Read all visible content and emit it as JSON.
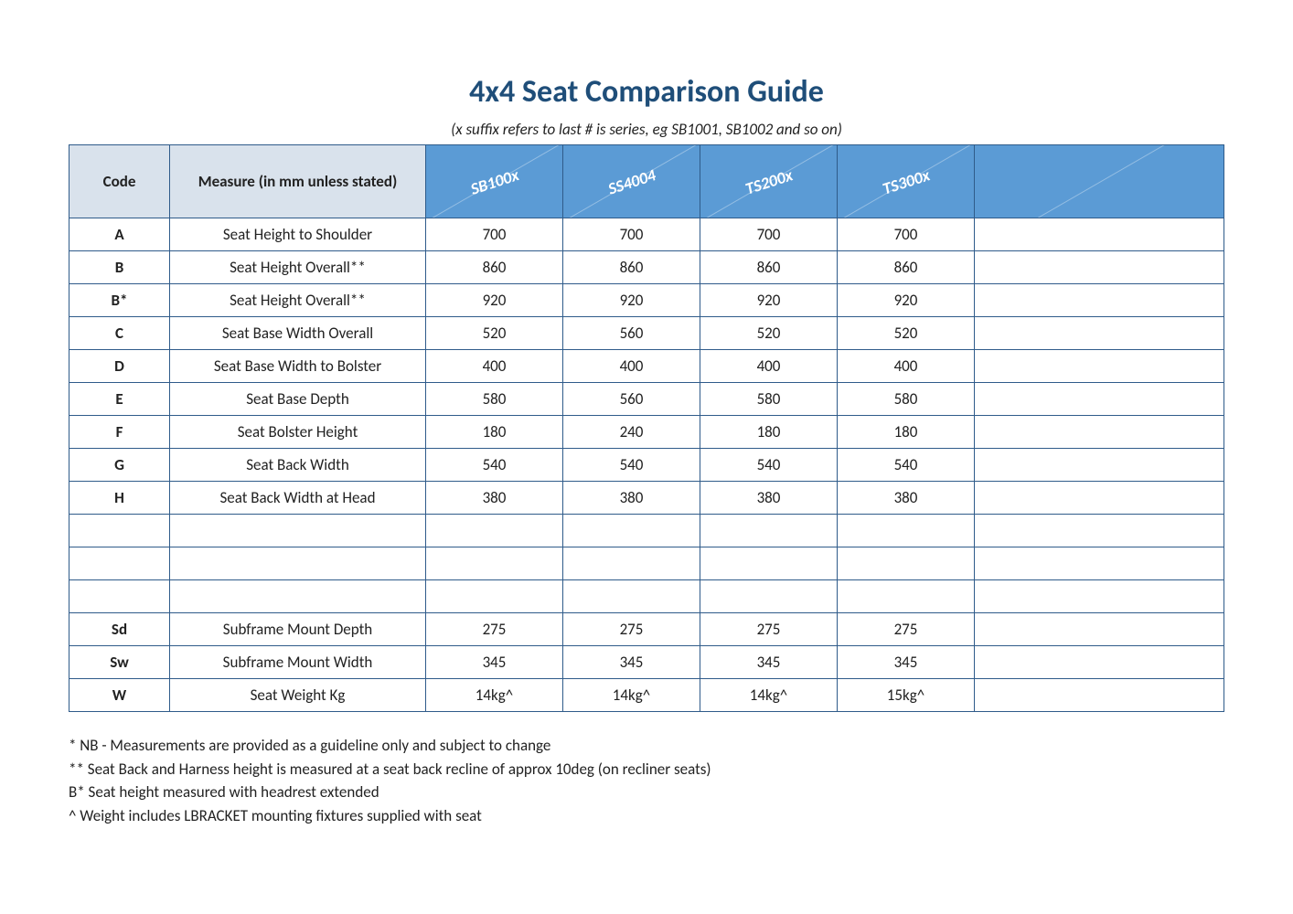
{
  "title": "4x4 Seat Comparison Guide",
  "subtitle": "(x suffix refers to last # is series, eg SB1001, SB1002 and so on)",
  "colors": {
    "title": "#1f4e79",
    "header_plain_bg": "#d9e2ec",
    "header_prod_bg": "#5b9bd5",
    "header_prod_fg": "#ffffff",
    "border": "#2f5b8a",
    "text": "#222222",
    "background": "#ffffff"
  },
  "typography": {
    "title_fontsize": 34,
    "subtitle_fontsize": 17,
    "cell_fontsize": 17,
    "prod_label_fontsize": 18,
    "footnote_fontsize": 17
  },
  "header": {
    "code": "Code",
    "measure": "Measure (in mm unless stated)",
    "products": [
      "SB100x",
      "SS4004",
      "TS200x",
      "TS300x",
      ""
    ]
  },
  "rows": [
    {
      "code": "A",
      "measure": "Seat Height to Shoulder",
      "v": [
        "700",
        "700",
        "700",
        "700",
        ""
      ]
    },
    {
      "code": "B",
      "measure": "Seat Height Overall**",
      "v": [
        "860",
        "860",
        "860",
        "860",
        ""
      ]
    },
    {
      "code": "B*",
      "measure": "Seat Height Overall**",
      "v": [
        "920",
        "920",
        "920",
        "920",
        ""
      ]
    },
    {
      "code": "C",
      "measure": "Seat Base Width Overall",
      "v": [
        "520",
        "560",
        "520",
        "520",
        ""
      ]
    },
    {
      "code": "D",
      "measure": "Seat Base Width to Bolster",
      "v": [
        "400",
        "400",
        "400",
        "400",
        ""
      ]
    },
    {
      "code": "E",
      "measure": "Seat Base Depth",
      "v": [
        "580",
        "560",
        "580",
        "580",
        ""
      ]
    },
    {
      "code": "F",
      "measure": "Seat Bolster Height",
      "v": [
        "180",
        "240",
        "180",
        "180",
        ""
      ]
    },
    {
      "code": "G",
      "measure": "Seat Back Width",
      "v": [
        "540",
        "540",
        "540",
        "540",
        ""
      ]
    },
    {
      "code": "H",
      "measure": "Seat Back Width at Head",
      "v": [
        "380",
        "380",
        "380",
        "380",
        ""
      ]
    },
    {
      "code": "",
      "measure": "",
      "v": [
        "",
        "",
        "",
        "",
        ""
      ]
    },
    {
      "code": "",
      "measure": "",
      "v": [
        "",
        "",
        "",
        "",
        ""
      ]
    },
    {
      "code": "",
      "measure": "",
      "v": [
        "",
        "",
        "",
        "",
        ""
      ]
    },
    {
      "code": "Sd",
      "measure": "Subframe Mount Depth",
      "v": [
        "275",
        "275",
        "275",
        "275",
        ""
      ]
    },
    {
      "code": "Sw",
      "measure": "Subframe Mount Width",
      "v": [
        "345",
        "345",
        "345",
        "345",
        ""
      ]
    },
    {
      "code": "W",
      "measure": "Seat Weight Kg",
      "v": [
        "14kg^",
        "14kg^",
        "14kg^",
        "15kg^",
        ""
      ]
    }
  ],
  "footnotes": [
    "* NB - Measurements are provided as a guideline only and subject to change",
    "** Seat Back and Harness height is measured at a seat back recline of approx 10deg (on recliner seats)",
    "B* Seat height measured with headrest extended",
    "^ Weight includes LBRACKET mounting fixtures supplied with seat"
  ]
}
